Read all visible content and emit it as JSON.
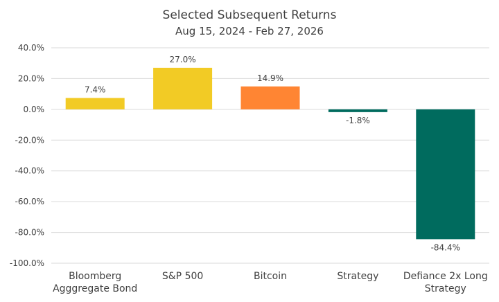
{
  "chart_data": {
    "type": "bar",
    "title": "Selected Subsequent Returns",
    "subtitle": "Aug 15, 2024 - Feb 27, 2026",
    "categories": [
      [
        "Bloomberg",
        "Agggregate Bond"
      ],
      [
        "S&P 500"
      ],
      [
        "Bitcoin"
      ],
      [
        "Strategy"
      ],
      [
        "Defiance 2x Long",
        "Strategy"
      ]
    ],
    "values": [
      7.4,
      27.0,
      14.9,
      -1.8,
      -84.4
    ],
    "data_labels": [
      "7.4%",
      "27.0%",
      "14.9%",
      "-1.8%",
      "-84.4%"
    ],
    "bar_colors": [
      "#f2cb25",
      "#f2cb25",
      "#ff8533",
      "#006b5e",
      "#006b5e"
    ],
    "ylim": [
      -100,
      40
    ],
    "yticks": [
      40,
      20,
      0,
      -20,
      -40,
      -60,
      -80,
      -100
    ],
    "ytick_labels": [
      "40.0%",
      "20.0%",
      "0.0%",
      "-20.0%",
      "-40.0%",
      "-60.0%",
      "-80.0%",
      "-100.0%"
    ],
    "xlabel": "",
    "ylabel": "",
    "grid": true,
    "legend": "none"
  },
  "colors": {
    "grid": "#d9d9d9",
    "text": "#404040"
  }
}
